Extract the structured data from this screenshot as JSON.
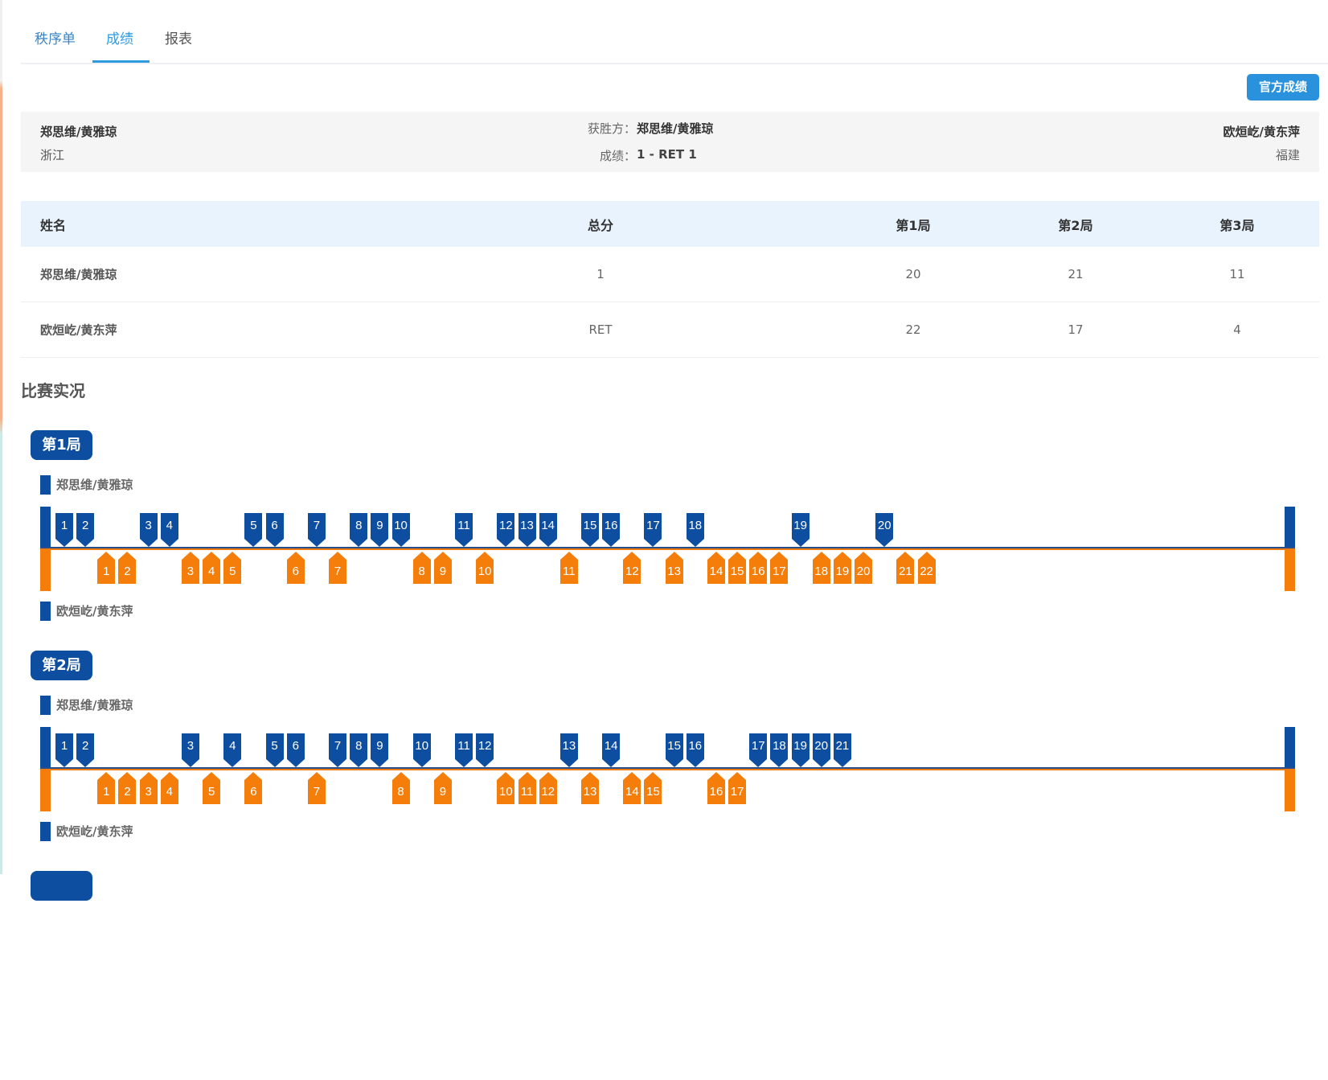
{
  "tabs": [
    {
      "label": "秩序单"
    },
    {
      "label": "成绩"
    },
    {
      "label": "报表"
    }
  ],
  "active_tab": "成绩",
  "official_button": "官方成绩",
  "summary": {
    "team_a": {
      "name": "郑思维/黄雅琼",
      "region": "浙江"
    },
    "team_b": {
      "name": "欧烜屹/黄东萍",
      "region": "福建"
    },
    "winner_label": "获胜方：",
    "winner": "郑思维/黄雅琼",
    "score_label": "成绩：",
    "score": "1 - RET 1"
  },
  "table": {
    "headers": [
      "姓名",
      "总分",
      "第1局",
      "第2局",
      "第3局"
    ],
    "rows": [
      [
        "郑思维/黄雅琼",
        "1",
        "20",
        "21",
        "11"
      ],
      [
        "欧烜屹/黄东萍",
        "RET",
        "22",
        "17",
        "4"
      ]
    ]
  },
  "section_title": "比赛实况",
  "colors": {
    "team_a": "#0d4ea0",
    "team_b": "#f57d0a",
    "accent": "#2e9ae0"
  },
  "games": [
    {
      "label": "第1局",
      "team_a": "郑思维/黄雅琼",
      "team_b": "欧烜屹/黄东萍",
      "rally_winners": "AABBAABBBAABABAAABBABAAABAABABABBBBABBBABB"
    },
    {
      "label": "第2局",
      "team_a": "郑思维/黄雅琼",
      "team_b": "欧烜屹/黄东萍",
      "rally_winners": "AABBBBABABAABAAABABAABBBABABBAABBAAAAA"
    },
    {
      "label": "",
      "team_a": "",
      "team_b": "",
      "rally_winners": ""
    }
  ]
}
